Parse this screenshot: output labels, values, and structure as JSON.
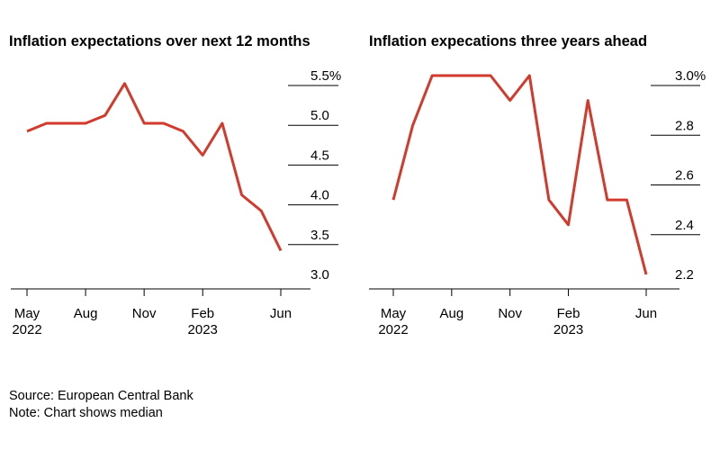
{
  "chart_data": [
    {
      "type": "line",
      "title": "Inflation expectations over next 12 months",
      "x": [
        "2022-05",
        "2022-06",
        "2022-07",
        "2022-08",
        "2022-09",
        "2022-10",
        "2022-11",
        "2022-12",
        "2023-01",
        "2023-02",
        "2023-03",
        "2023-04",
        "2023-05",
        "2023-06"
      ],
      "x_ticks": [
        {
          "x": "2022-05",
          "label": "May",
          "sub": "2022"
        },
        {
          "x": "2022-08",
          "label": "Aug",
          "sub": ""
        },
        {
          "x": "2022-11",
          "label": "Nov",
          "sub": ""
        },
        {
          "x": "2023-02",
          "label": "Feb",
          "sub": "2023"
        },
        {
          "x": "2023-06",
          "label": "Jun",
          "sub": ""
        }
      ],
      "series": [
        {
          "values": [
            4.8,
            4.9,
            4.9,
            4.9,
            5.0,
            5.4,
            4.9,
            4.9,
            4.8,
            4.5,
            4.9,
            4.0,
            3.8,
            3.3
          ],
          "color": "#d13a2c"
        }
      ],
      "y_ticks": [
        3.0,
        3.5,
        4.0,
        4.5,
        5.0,
        5.5
      ],
      "y_tick_labels": [
        "3.0",
        "3.5",
        "4.0",
        "4.5",
        "5.0",
        "5.5%"
      ],
      "ylim": [
        3.0,
        5.5
      ],
      "grid": false
    },
    {
      "type": "line",
      "title": "Inflation expecations three years ahead",
      "x": [
        "2022-05",
        "2022-06",
        "2022-07",
        "2022-08",
        "2022-09",
        "2022-10",
        "2022-11",
        "2022-12",
        "2023-01",
        "2023-02",
        "2023-03",
        "2023-04",
        "2023-05",
        "2023-06"
      ],
      "x_ticks": [
        {
          "x": "2022-05",
          "label": "May",
          "sub": "2022"
        },
        {
          "x": "2022-08",
          "label": "Aug",
          "sub": ""
        },
        {
          "x": "2022-11",
          "label": "Nov",
          "sub": ""
        },
        {
          "x": "2023-02",
          "label": "Feb",
          "sub": "2023"
        },
        {
          "x": "2023-06",
          "label": "Jun",
          "sub": ""
        }
      ],
      "series": [
        {
          "values": [
            2.5,
            2.8,
            3.0,
            3.0,
            3.0,
            3.0,
            2.9,
            3.0,
            2.5,
            2.4,
            2.9,
            2.5,
            2.5,
            2.2
          ],
          "color": "#d13a2c"
        }
      ],
      "y_ticks": [
        2.2,
        2.4,
        2.6,
        2.8,
        3.0
      ],
      "y_tick_labels": [
        "2.2",
        "2.4",
        "2.6",
        "2.8",
        "3.0%"
      ],
      "ylim": [
        2.2,
        3.0
      ],
      "grid": false
    }
  ],
  "footer": {
    "source": "Source: European Central Bank",
    "note": "Note: Chart shows median"
  }
}
